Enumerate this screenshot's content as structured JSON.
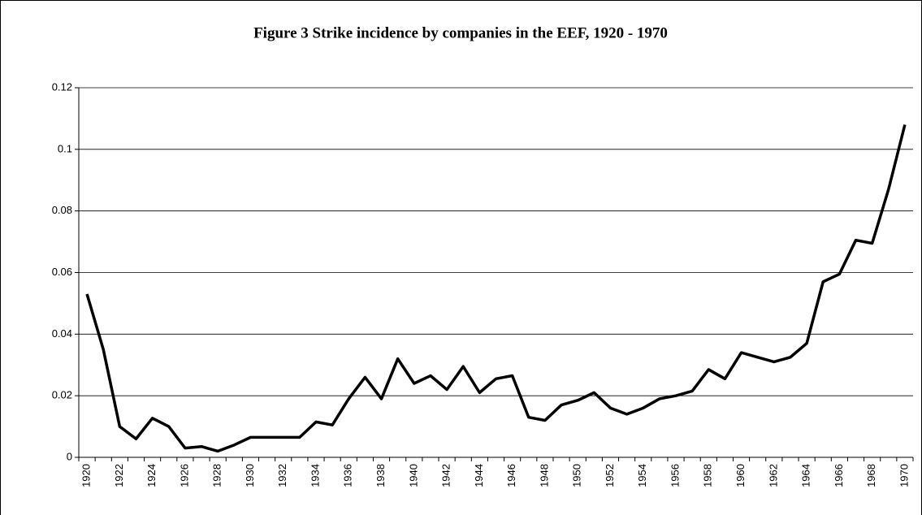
{
  "chart_data": {
    "type": "line",
    "title": "Figure 3  Strike incidence by companies in the EEF, 1920 - 1970",
    "categories": [
      "1920",
      null,
      "1922",
      null,
      "1924",
      null,
      "1926",
      null,
      "1928",
      null,
      "1930",
      null,
      "1932",
      null,
      "1934",
      null,
      "1936",
      null,
      "1938",
      null,
      "1940",
      null,
      "1942",
      null,
      "1944",
      null,
      "1946",
      null,
      "1948",
      null,
      "1950",
      null,
      "1952",
      null,
      "1954",
      null,
      "1956",
      null,
      "1958",
      null,
      "1960",
      null,
      "1962",
      null,
      "1964",
      null,
      "1966",
      null,
      "1968",
      null,
      "1970"
    ],
    "values": [
      0.053,
      0.035,
      0.01,
      0.006,
      0.0127,
      0.01,
      0.003,
      0.0035,
      0.002,
      0.004,
      0.0065,
      0.0065,
      0.0065,
      0.0065,
      0.0115,
      0.0105,
      0.019,
      0.026,
      0.019,
      0.032,
      0.024,
      0.0265,
      0.022,
      0.0295,
      0.021,
      0.0255,
      0.0265,
      0.013,
      0.012,
      0.017,
      0.0185,
      0.021,
      0.016,
      0.014,
      0.016,
      0.019,
      0.02,
      0.0215,
      0.0285,
      0.0255,
      0.034,
      0.0325,
      0.031,
      0.0325,
      0.037,
      0.057,
      0.0595,
      0.0705,
      0.0695,
      0.087,
      0.108
    ],
    "color": "#000000",
    "ylim": [
      0,
      0.12
    ],
    "yticks": [
      0,
      0.02,
      0.04,
      0.06,
      0.08,
      0.1,
      0.12
    ],
    "grid": true
  }
}
